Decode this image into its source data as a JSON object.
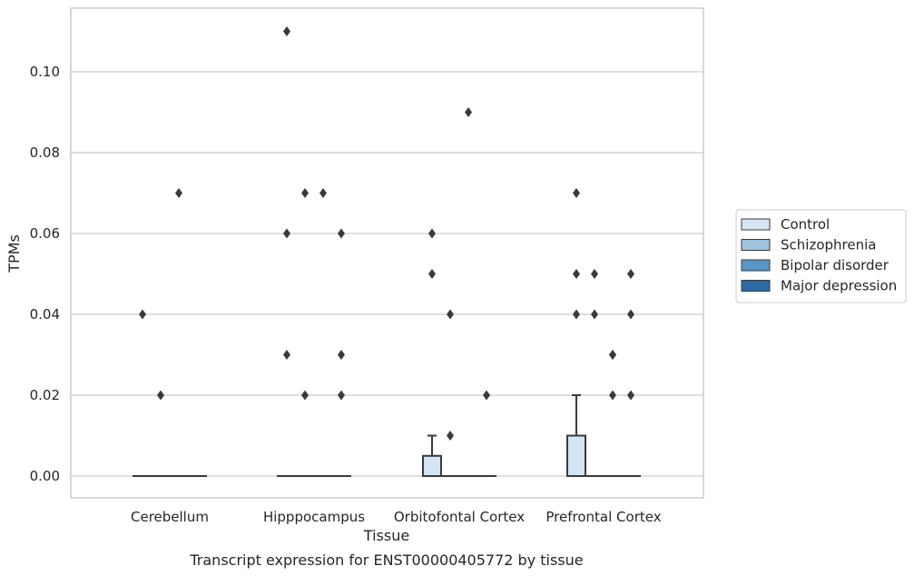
{
  "chart_data": {
    "type": "box",
    "title": "",
    "caption": "Transcript expression for ENST00000405772 by tissue",
    "xlabel": "Tissue",
    "ylabel": "TPMs",
    "ylim": [
      -0.0054,
      0.1158
    ],
    "yticks": [
      0.0,
      0.02,
      0.04,
      0.06,
      0.08,
      0.1
    ],
    "ytick_labels": [
      "0.00",
      "0.02",
      "0.04",
      "0.06",
      "0.08",
      "0.10"
    ],
    "grid": true,
    "legend_position": "right",
    "categories": [
      "Cerebellum",
      "Hipppocampus",
      "Orbitofontal Cortex",
      "Prefrontal Cortex"
    ],
    "series": [
      {
        "name": "Control",
        "color": "#d4e4f2",
        "boxes": [
          {
            "q1": 0,
            "median": 0,
            "q3": 0,
            "whisker_low": 0,
            "whisker_high": 0,
            "outliers": [
              0.04
            ]
          },
          {
            "q1": 0,
            "median": 0,
            "q3": 0,
            "whisker_low": 0,
            "whisker_high": 0,
            "outliers": [
              0.11,
              0.06,
              0.03
            ]
          },
          {
            "q1": 0,
            "median": 0,
            "q3": 0.005,
            "whisker_low": 0,
            "whisker_high": 0.01,
            "outliers": [
              0.06,
              0.05
            ]
          },
          {
            "q1": 0,
            "median": 0,
            "q3": 0.01,
            "whisker_low": 0,
            "whisker_high": 0.02,
            "outliers": [
              0.07,
              0.05,
              0.04
            ]
          }
        ]
      },
      {
        "name": "Schizophrenia",
        "color": "#9dc3df",
        "boxes": [
          {
            "q1": 0,
            "median": 0,
            "q3": 0,
            "whisker_low": 0,
            "whisker_high": 0,
            "outliers": [
              0.02
            ]
          },
          {
            "q1": 0,
            "median": 0,
            "q3": 0,
            "whisker_low": 0,
            "whisker_high": 0,
            "outliers": [
              0.07,
              0.02
            ]
          },
          {
            "q1": 0,
            "median": 0,
            "q3": 0,
            "whisker_low": 0,
            "whisker_high": 0,
            "outliers": [
              0.04,
              0.01
            ]
          },
          {
            "q1": 0,
            "median": 0,
            "q3": 0,
            "whisker_low": 0,
            "whisker_high": 0,
            "outliers": [
              0.05,
              0.04
            ]
          }
        ]
      },
      {
        "name": "Bipolar disorder",
        "color": "#5896c6",
        "boxes": [
          {
            "q1": 0,
            "median": 0,
            "q3": 0,
            "whisker_low": 0,
            "whisker_high": 0,
            "outliers": [
              0.07
            ]
          },
          {
            "q1": 0,
            "median": 0,
            "q3": 0,
            "whisker_low": 0,
            "whisker_high": 0,
            "outliers": [
              0.07
            ]
          },
          {
            "q1": 0,
            "median": 0,
            "q3": 0,
            "whisker_low": 0,
            "whisker_high": 0,
            "outliers": [
              0.09
            ]
          },
          {
            "q1": 0,
            "median": 0,
            "q3": 0,
            "whisker_low": 0,
            "whisker_high": 0,
            "outliers": [
              0.03,
              0.03,
              0.02
            ]
          }
        ]
      },
      {
        "name": "Major depression",
        "color": "#2c6ba5",
        "boxes": [
          {
            "q1": 0,
            "median": 0,
            "q3": 0,
            "whisker_low": 0,
            "whisker_high": 0,
            "outliers": []
          },
          {
            "q1": 0,
            "median": 0,
            "q3": 0,
            "whisker_low": 0,
            "whisker_high": 0,
            "outliers": [
              0.06,
              0.03,
              0.02
            ]
          },
          {
            "q1": 0,
            "median": 0,
            "q3": 0,
            "whisker_low": 0,
            "whisker_high": 0,
            "outliers": [
              0.02
            ]
          },
          {
            "q1": 0,
            "median": 0,
            "q3": 0,
            "whisker_low": 0,
            "whisker_high": 0,
            "outliers": [
              0.05,
              0.04,
              0.02
            ]
          }
        ]
      }
    ]
  }
}
